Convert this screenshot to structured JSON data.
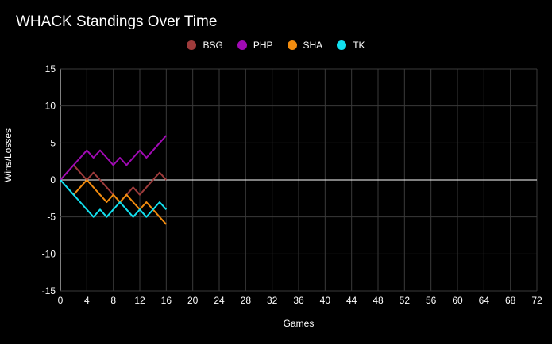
{
  "chart_data": {
    "type": "line",
    "title": "WHACK Standings Over Time",
    "xlabel": "Games",
    "ylabel": "Wins/Losses",
    "xlim": [
      0,
      72
    ],
    "ylim": [
      -15,
      15
    ],
    "x_ticks": [
      0,
      4,
      8,
      12,
      16,
      20,
      24,
      28,
      32,
      36,
      40,
      44,
      48,
      52,
      56,
      60,
      64,
      68,
      72
    ],
    "y_ticks": [
      15,
      10,
      5,
      0,
      -5,
      -10,
      -15
    ],
    "legend_position": "top-center",
    "grid": true,
    "series": [
      {
        "name": "BSG",
        "color": "#9e3b3b",
        "x": [
          0,
          1,
          2,
          3,
          4,
          5,
          6,
          7,
          8,
          9,
          10,
          11,
          12,
          13,
          14,
          15,
          16
        ],
        "y": [
          0,
          1,
          2,
          1,
          0,
          1,
          0,
          -1,
          -2,
          -3,
          -2,
          -1,
          -2,
          -1,
          0,
          1,
          0
        ]
      },
      {
        "name": "PHP",
        "color": "#a10ab5",
        "x": [
          0,
          1,
          2,
          3,
          4,
          5,
          6,
          7,
          8,
          9,
          10,
          11,
          12,
          13,
          14,
          15,
          16
        ],
        "y": [
          0,
          1,
          2,
          3,
          4,
          3,
          4,
          3,
          2,
          3,
          2,
          3,
          4,
          3,
          4,
          5,
          6
        ]
      },
      {
        "name": "SHA",
        "color": "#f28c0f",
        "x": [
          2,
          3,
          4,
          5,
          6,
          7,
          8,
          9,
          10,
          11,
          12,
          13,
          14,
          15,
          16
        ],
        "y": [
          -2,
          -1,
          0,
          -1,
          -2,
          -3,
          -2,
          -3,
          -2,
          -3,
          -4,
          -3,
          -4,
          -5,
          -6
        ]
      },
      {
        "name": "TK",
        "color": "#12e0ef",
        "x": [
          0,
          1,
          2,
          3,
          4,
          5,
          6,
          7,
          8,
          9,
          10,
          11,
          12,
          13,
          14,
          15,
          16
        ],
        "y": [
          0,
          -1,
          -2,
          -3,
          -4,
          -5,
          -4,
          -5,
          -4,
          -3,
          -4,
          -5,
          -4,
          -5,
          -4,
          -3,
          -4
        ]
      }
    ]
  }
}
